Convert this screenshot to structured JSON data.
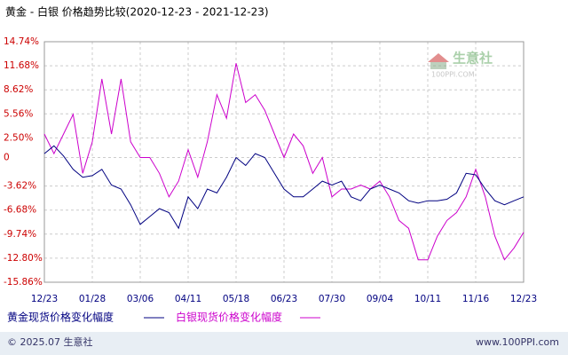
{
  "chart_data": {
    "type": "line",
    "title": "黄金 - 白银 价格趋势比较(2020-12-23 - 2021-12-23)",
    "categories": [
      "12/23",
      null,
      null,
      null,
      null,
      "01/28",
      null,
      null,
      null,
      null,
      "03/06",
      null,
      null,
      null,
      null,
      "04/11",
      null,
      null,
      null,
      null,
      "05/18",
      null,
      null,
      null,
      null,
      "06/23",
      null,
      null,
      null,
      null,
      "07/30",
      null,
      null,
      null,
      null,
      "09/04",
      null,
      null,
      null,
      null,
      "10/11",
      null,
      null,
      null,
      null,
      "11/16",
      null,
      null,
      null,
      null,
      "12/23"
    ],
    "series": [
      {
        "name": "黄金现货价格变化幅度",
        "color": "#000080",
        "values": [
          0.5,
          1.5,
          0.2,
          -1.5,
          -2.5,
          -2.3,
          -1.5,
          -3.5,
          -4,
          -6,
          -8.5,
          -7.5,
          -6.5,
          -7,
          -9,
          -5,
          -6.5,
          -4,
          -4.5,
          -2.5,
          0,
          -1,
          0.5,
          0,
          -2,
          -4,
          -5,
          -5,
          -4,
          -3,
          -3.5,
          -3,
          -5,
          -5.5,
          -4,
          -3.5,
          -4,
          -4.5,
          -5.5,
          -5.8,
          -5.5,
          -5.5,
          -5.3,
          -4.5,
          -2,
          -2.2,
          -4,
          -5.5,
          -6,
          -5.5,
          -5
        ]
      },
      {
        "name": "白银现货价格变化幅度",
        "color": "#cc00cc",
        "values": [
          3,
          0.5,
          3,
          5.5,
          -2,
          2,
          10,
          3,
          10,
          2,
          0,
          0,
          -2,
          -5,
          -3,
          1,
          -2.5,
          2,
          8,
          5,
          12,
          7,
          8,
          6,
          3,
          0,
          3,
          1.5,
          -2,
          0,
          -5,
          -4,
          -4,
          -3.5,
          -4,
          -3,
          -5,
          -8,
          -9,
          -13,
          -13,
          -10,
          -8,
          -7,
          -5,
          -1.5,
          -5,
          -10,
          -13,
          -11.5,
          -9.5
        ]
      }
    ],
    "ylim": [
      -15.86,
      14.74
    ],
    "yticks": [
      {
        "value": 14.74,
        "label": "14.74%"
      },
      {
        "value": 11.68,
        "label": "11.68%"
      },
      {
        "value": 8.62,
        "label": "8.62%"
      },
      {
        "value": 5.56,
        "label": "5.56%"
      },
      {
        "value": 2.5,
        "label": "2.50%"
      },
      0,
      {
        "value": -3.62,
        "label": "-3.62%"
      },
      {
        "value": -6.68,
        "label": "-6.68%"
      },
      {
        "value": -9.74,
        "label": "-9.74%"
      },
      {
        "value": -12.8,
        "label": "-12.80%"
      },
      {
        "value": -15.86,
        "label": "-15.86%"
      }
    ],
    "grid": true
  },
  "watermark": {
    "name": "生意社",
    "site": "100PPI.COM"
  },
  "footer": {
    "copyright": "© 2025.07 生意社",
    "url": "www.100PPI.com"
  }
}
